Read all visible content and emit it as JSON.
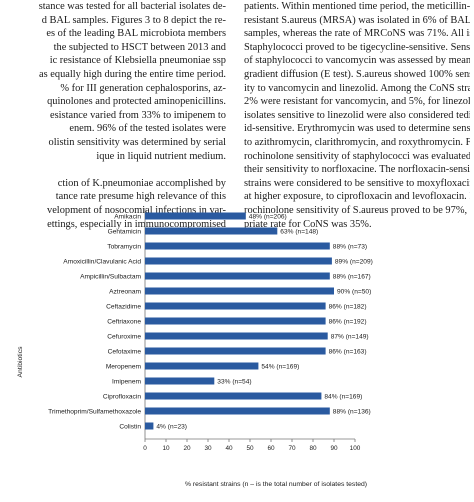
{
  "document": {
    "left_column": [
      "stance was tested for all bacterial isolates de-",
      "d BAL samples. Figures 3 to 8 depict the re-",
      "es of the leading BAL microbiota members",
      "the subjected to HSCT between 2013 and",
      "ic resistance of Klebsiella pneumoniae ssp",
      "as equally high during the entire time period.",
      "% for III generation cephalosporins, az-",
      "quinolones and protected aminopenicillins.",
      "esistance varied from 33% to imipenem to",
      "enem. 96% of the tested isolates were",
      "olistin sensitivity was determined by serial",
      "ique in liquid nutrient medium.",
      "",
      "ction of K.pneumoniae accomplished by",
      "tance rate presume high relevance of this",
      "velopment of nosocomial infections in var-",
      "ettings, especially in immunocompromised"
    ],
    "right_column": [
      "patients. Within mentioned time period, the meticillin-",
      "resistant S.aureus (MRSA) was isolated in 6% of BAL",
      "samples, whereas the rate of MRCoNS was 71%. All isolates of",
      "Staphylococci proved to be tigecycline-sensitive. Sensitivity",
      "of staphylococci to vancomycin was assessed by means of",
      "gradient diffusion (E test). S.aureus showed 100% sensitiv-",
      "ity to vancomycin and linezolid. Among the CoNS strains,",
      "2% were resistant for vancomycin, and 5%, for linezolid. The",
      "isolates sensitive to linezolid were also considered tedizol-",
      "id-sensitive. Erythromycin was used to determine sensitivity",
      "to azithromycin, clarithromycin, and roxythromycin. Fluo-",
      "rochinolone sensitivity of staphylococci was evaluated by",
      "their sensitivity to norfloxacine. The norfloxacin-sensitive",
      "strains were considered to be sensitive to moxyfloxacin and,",
      "at higher exposure, to ciprofloxacin and levofloxacin. Fluo-",
      "rochinolone sensitivity of S.aureus proved to be 97%, appro-",
      "priate rate for CoNS was 35%."
    ]
  },
  "colors": {
    "bar": "#2a5aa0",
    "text": "#1a1a1a",
    "axis": "#777777"
  },
  "chart_data": {
    "type": "bar",
    "orientation": "horizontal",
    "title": "",
    "ylabel": "Antibiotics",
    "xlabel": "% resistant strains (n – is the total number of isolates tested)",
    "xlim": [
      0,
      100
    ],
    "xticks": [
      0,
      10,
      20,
      30,
      40,
      50,
      60,
      70,
      80,
      90,
      100
    ],
    "grid": false,
    "categories": [
      "Amikacin",
      "Gentamicin",
      "Tobramycin",
      "Amoxicillin/Clavulanic Acid",
      "Ampicillin/Sulbactam",
      "Aztreonam",
      "Ceftazidime",
      "Ceftriaxone",
      "Cefuroxime",
      "Cefotaxime",
      "Meropenem",
      "Imipenem",
      "Ciprofloxacin",
      "Trimethoprim/Sulfamethoxazole",
      "Colistin"
    ],
    "values": [
      48,
      63,
      88,
      89,
      88,
      90,
      86,
      86,
      87,
      86,
      54,
      33,
      84,
      88,
      4
    ],
    "labels": [
      "48% (n=206)",
      "63% (n=148)",
      "88% (n=73)",
      "89% (n=209)",
      "88% (n=167)",
      "90% (n=50)",
      "86% (n=182)",
      "86% (n=192)",
      "87% (n=149)",
      "86% (n=163)",
      "54% (n=169)",
      "33% (n=54)",
      "84% (n=169)",
      "88% (n=136)",
      "4% (n=23)"
    ]
  }
}
